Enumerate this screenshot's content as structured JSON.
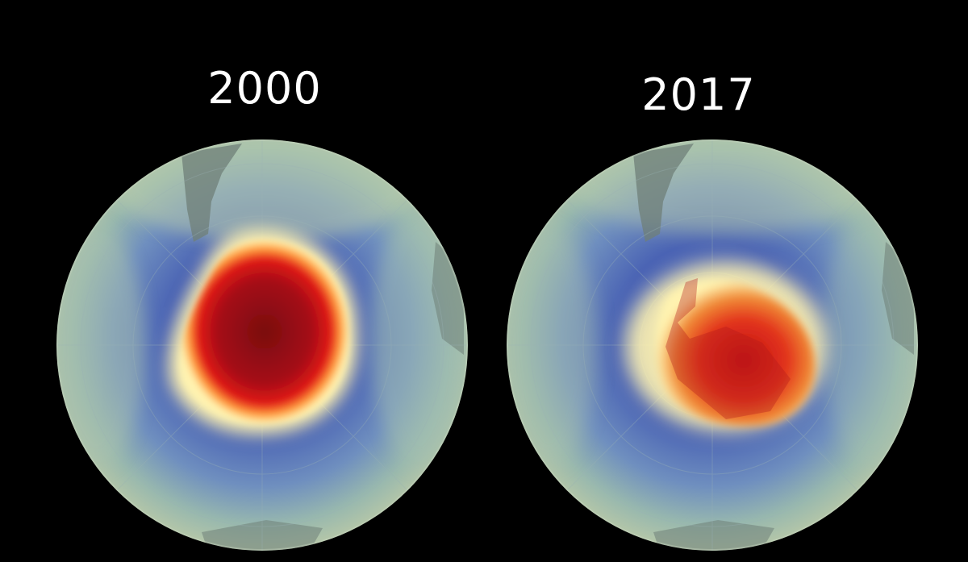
{
  "panels": [
    {
      "year": "2000",
      "hole": "large"
    },
    {
      "year": "2017",
      "hole": "smaller"
    }
  ],
  "colors": {
    "background": "#000000",
    "hole_core": "#8a0a12",
    "hole_edge": "#e01818",
    "ring": "#fff3b0",
    "low_band": "#4a63b4",
    "outer": "#8fb0a8"
  }
}
